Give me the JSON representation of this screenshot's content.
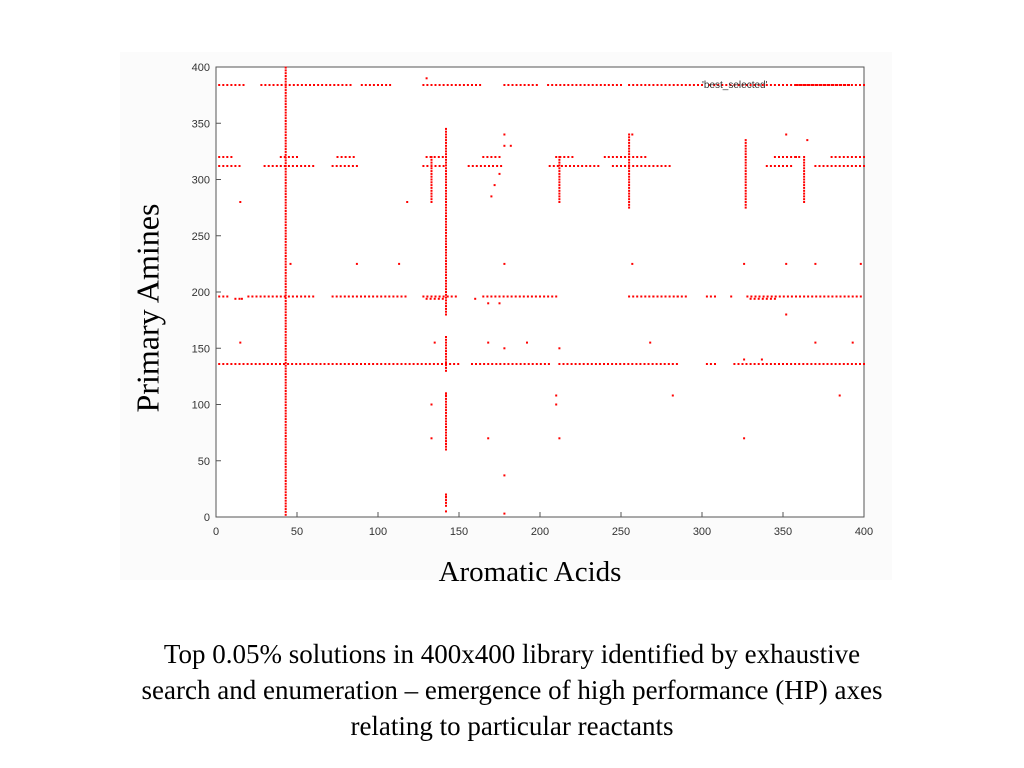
{
  "chart_data": {
    "type": "scatter",
    "title": "",
    "xlabel": "Aromatic Acids",
    "ylabel": "Primary Amines",
    "xlim": [
      0,
      400
    ],
    "ylim": [
      0,
      400
    ],
    "xticks": [
      "0",
      "50",
      "100",
      "150",
      "200",
      "250",
      "300",
      "350",
      "400"
    ],
    "yticks": [
      "0",
      "50",
      "100",
      "150",
      "200",
      "250",
      "300",
      "350",
      "400"
    ],
    "grid": false,
    "legend_position": "top-right",
    "series": [
      {
        "name": "'best_selected'",
        "color": "#ff0000",
        "rows": [
          {
            "y": 384,
            "x_ranges": [
              [
                2,
                18
              ],
              [
                28,
                85
              ],
              [
                90,
                108
              ],
              [
                128,
                165
              ],
              [
                178,
                198
              ],
              [
                205,
                250
              ],
              [
                255,
                300
              ],
              [
                305,
                400
              ]
            ]
          },
          {
            "y": 320,
            "x_ranges": [
              [
                2,
                10
              ],
              [
                40,
                52
              ],
              [
                75,
                85
              ],
              [
                130,
                140
              ],
              [
                165,
                175
              ],
              [
                210,
                220
              ],
              [
                240,
                265
              ],
              [
                345,
                360
              ],
              [
                380,
                400
              ]
            ]
          },
          {
            "y": 312,
            "x_ranges": [
              [
                2,
                16
              ],
              [
                30,
                62
              ],
              [
                72,
                88
              ],
              [
                128,
                142
              ],
              [
                156,
                176
              ],
              [
                206,
                236
              ],
              [
                245,
                282
              ],
              [
                340,
                356
              ],
              [
                370,
                400
              ]
            ]
          },
          {
            "y": 196,
            "x_ranges": [
              [
                2,
                8
              ],
              [
                20,
                60
              ],
              [
                72,
                118
              ],
              [
                128,
                148
              ],
              [
                165,
                210
              ],
              [
                255,
                290
              ],
              [
                303,
                308
              ],
              [
                328,
                400
              ]
            ]
          },
          {
            "y": 194,
            "x_ranges": [
              [
                12,
                16
              ],
              [
                130,
                140
              ],
              [
                330,
                346
              ]
            ]
          },
          {
            "y": 136,
            "x_ranges": [
              [
                2,
                150
              ],
              [
                158,
                206
              ],
              [
                212,
                285
              ],
              [
                303,
                308
              ],
              [
                320,
                400
              ]
            ]
          }
        ],
        "columns": [
          {
            "x": 43,
            "y_ranges": [
              [
                2,
                400
              ]
            ]
          },
          {
            "x": 142,
            "y_ranges": [
              [
                10,
                20
              ],
              [
                60,
                110
              ],
              [
                130,
                160
              ],
              [
                180,
                345
              ]
            ]
          },
          {
            "x": 327,
            "y_ranges": [
              [
                275,
                335
              ]
            ]
          },
          {
            "x": 133,
            "y_ranges": [
              [
                280,
                320
              ]
            ]
          },
          {
            "x": 212,
            "y_ranges": [
              [
                280,
                320
              ]
            ]
          },
          {
            "x": 255,
            "y_ranges": [
              [
                275,
                340
              ]
            ]
          },
          {
            "x": 363,
            "y_ranges": [
              [
                280,
                320
              ]
            ]
          }
        ],
        "points": [
          [
            15,
            280
          ],
          [
            46,
            225
          ],
          [
            87,
            225
          ],
          [
            113,
            225
          ],
          [
            118,
            280
          ],
          [
            130,
            390
          ],
          [
            133,
            100
          ],
          [
            133,
            70
          ],
          [
            135,
            155
          ],
          [
            142,
            5
          ],
          [
            142,
            18
          ],
          [
            142,
            65
          ],
          [
            142,
            70
          ],
          [
            142,
            100
          ],
          [
            142,
            108
          ],
          [
            168,
            155
          ],
          [
            168,
            70
          ],
          [
            170,
            285
          ],
          [
            172,
            295
          ],
          [
            175,
            305
          ],
          [
            178,
            225
          ],
          [
            178,
            330
          ],
          [
            178,
            340
          ],
          [
            178,
            150
          ],
          [
            178,
            37
          ],
          [
            178,
            3
          ],
          [
            182,
            330
          ],
          [
            192,
            155
          ],
          [
            210,
            100
          ],
          [
            210,
            108
          ],
          [
            212,
            70
          ],
          [
            212,
            150
          ],
          [
            257,
            225
          ],
          [
            257,
            340
          ],
          [
            268,
            155
          ],
          [
            282,
            108
          ],
          [
            326,
            70
          ],
          [
            326,
            225
          ],
          [
            326,
            140
          ],
          [
            337,
            140
          ],
          [
            352,
            180
          ],
          [
            352,
            340
          ],
          [
            352,
            225
          ],
          [
            358,
            320
          ],
          [
            365,
            335
          ],
          [
            370,
            225
          ],
          [
            370,
            155
          ],
          [
            385,
            108
          ],
          [
            393,
            155
          ],
          [
            398,
            225
          ],
          [
            15,
            155
          ],
          [
            16,
            194
          ],
          [
            160,
            194
          ],
          [
            168,
            190
          ],
          [
            175,
            190
          ],
          [
            270,
            196
          ],
          [
            285,
            196
          ],
          [
            318,
            196
          ]
        ]
      }
    ]
  },
  "caption": {
    "lines": [
      "Top 0.05% solutions in 400x400 library identified by exhaustive",
      "search and enumeration – emergence of high performance (HP) axes",
      "relating to particular reactants"
    ]
  }
}
